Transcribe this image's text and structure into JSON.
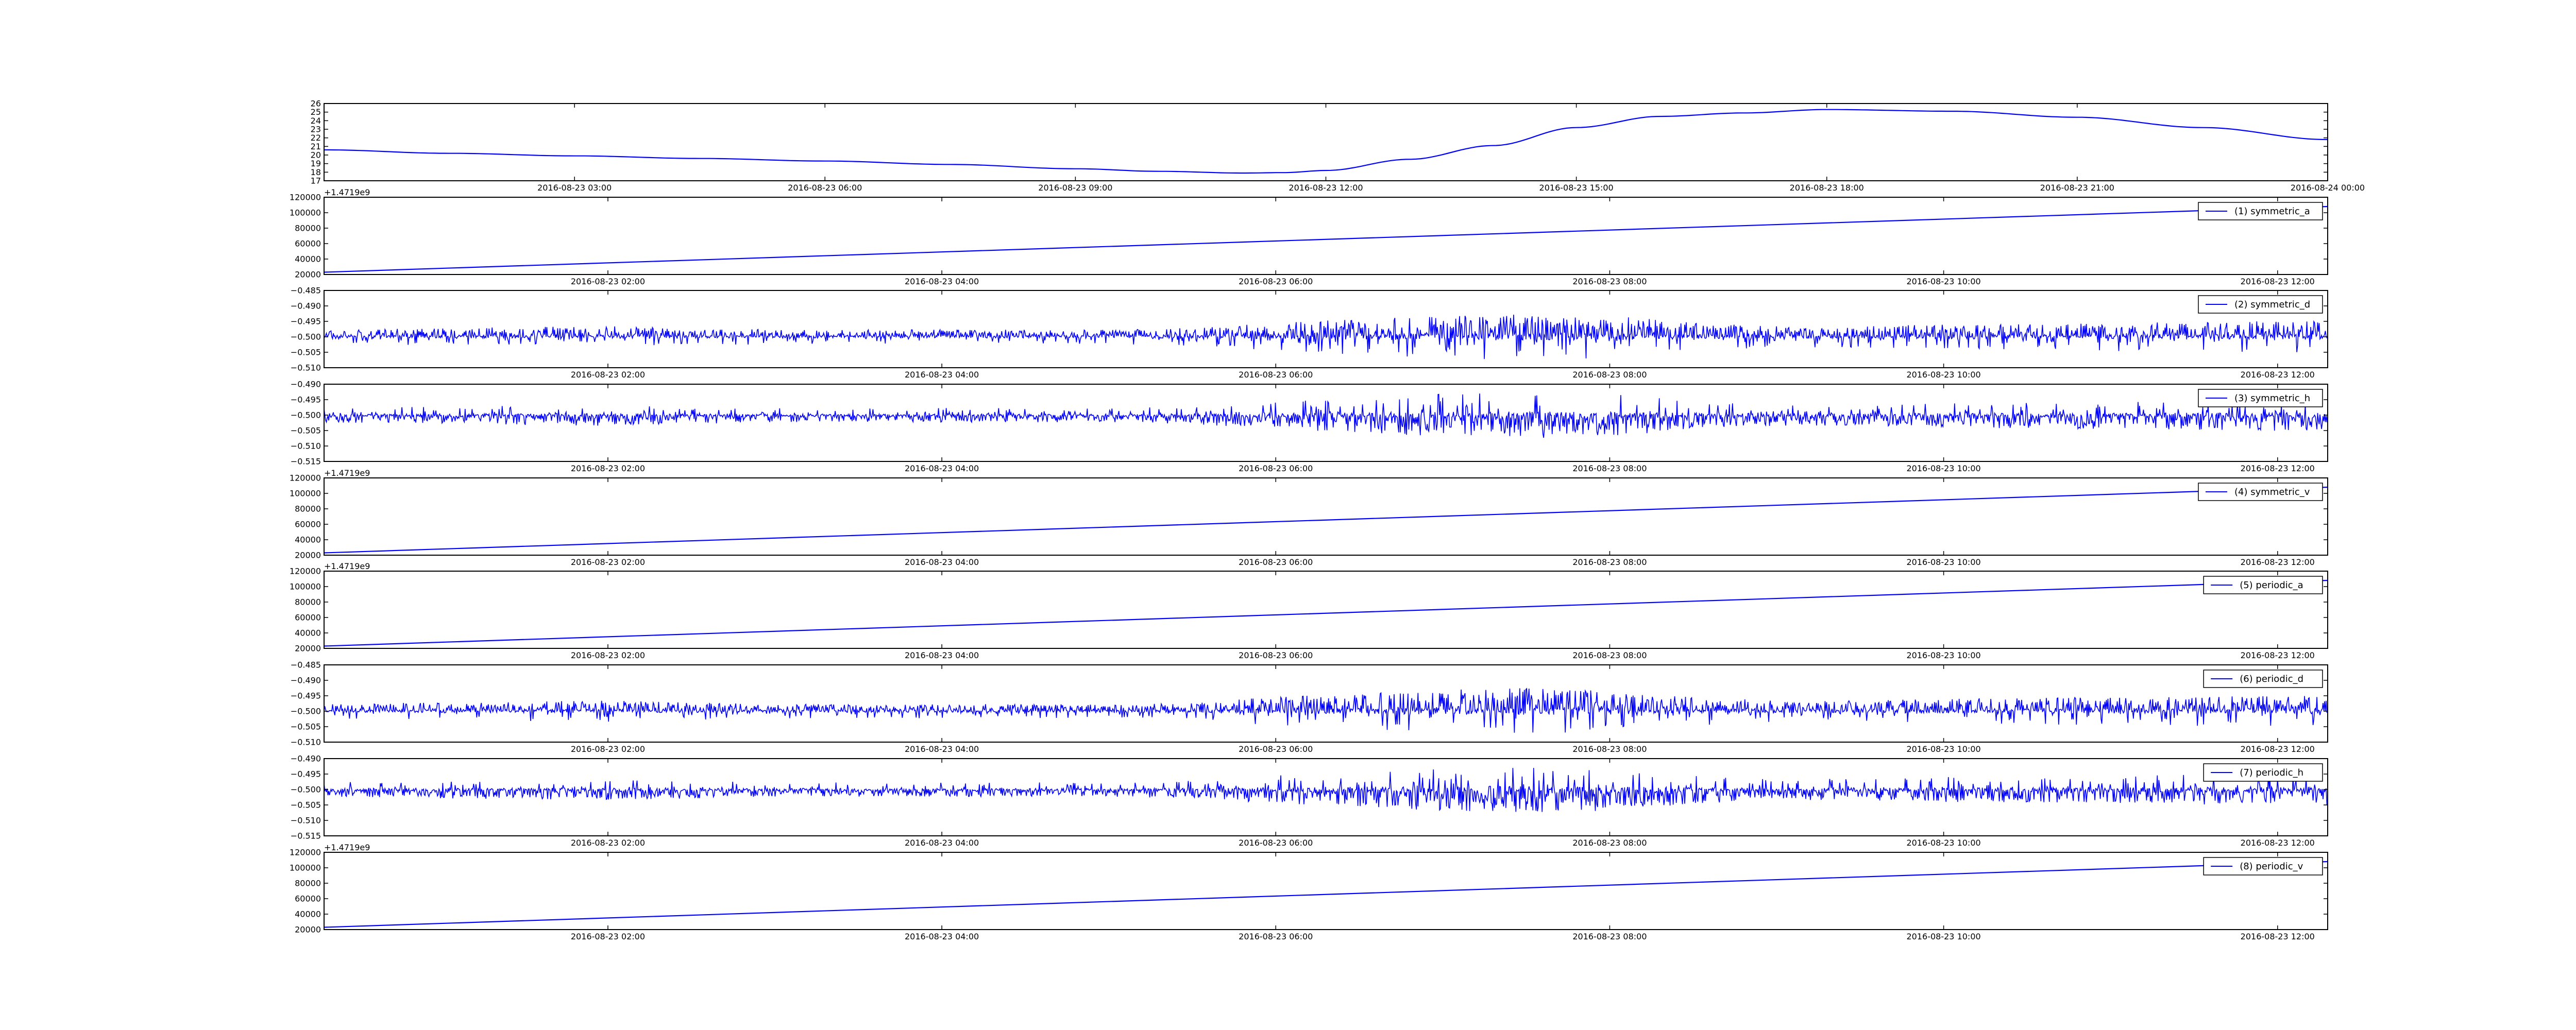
{
  "chart_data": [
    {
      "type": "line",
      "ylim": [
        17,
        26
      ],
      "y_ticks": [
        "17",
        "18",
        "19",
        "20",
        "21",
        "22",
        "23",
        "24",
        "25",
        "26"
      ],
      "x_ticks": [
        "2016-08-23 03:00",
        "2016-08-23 06:00",
        "2016-08-23 09:00",
        "2016-08-23 12:00",
        "2016-08-23 15:00",
        "2016-08-23 18:00",
        "2016-08-23 21:00",
        "2016-08-24 00:00"
      ],
      "offset_text": "",
      "legend": "",
      "series": [
        {
          "kind": "smooth",
          "x": [
            "2016-08-23 00:00",
            "2016-08-23 01:30",
            "2016-08-23 03:00",
            "2016-08-23 04:30",
            "2016-08-23 06:00",
            "2016-08-23 07:30",
            "2016-08-23 09:00",
            "2016-08-23 10:00",
            "2016-08-23 11:00",
            "2016-08-23 11:30",
            "2016-08-23 12:00",
            "2016-08-23 13:00",
            "2016-08-23 14:00",
            "2016-08-23 15:00",
            "2016-08-23 16:00",
            "2016-08-23 17:00",
            "2016-08-23 18:00",
            "2016-08-23 19:30",
            "2016-08-23 21:00",
            "2016-08-23 22:30",
            "2016-08-24 00:00"
          ],
          "values": [
            20.6,
            20.2,
            19.9,
            19.6,
            19.3,
            18.9,
            18.4,
            18.1,
            17.9,
            17.95,
            18.2,
            19.5,
            21.1,
            23.2,
            24.5,
            24.9,
            25.3,
            25.1,
            24.4,
            23.2,
            21.8
          ]
        }
      ]
    },
    {
      "type": "line",
      "ylim": [
        20000,
        120000
      ],
      "y_ticks": [
        "20000",
        "40000",
        "60000",
        "80000",
        "100000",
        "120000"
      ],
      "x_ticks": [
        "2016-08-23 02:00",
        "2016-08-23 04:00",
        "2016-08-23 06:00",
        "2016-08-23 08:00",
        "2016-08-23 10:00",
        "2016-08-23 12:00"
      ],
      "offset_text": "+1.4719e9",
      "legend": "(1) symmetric_a",
      "series": [
        {
          "kind": "linear",
          "x": [
            "2016-08-23 00:18",
            "2016-08-23 12:18"
          ],
          "values": [
            23000,
            108000
          ]
        }
      ]
    },
    {
      "type": "line",
      "ylim": [
        -0.51,
        -0.485
      ],
      "y_ticks": [
        "−0.510",
        "−0.505",
        "−0.500",
        "−0.495",
        "−0.490",
        "−0.485"
      ],
      "x_ticks": [
        "2016-08-23 02:00",
        "2016-08-23 04:00",
        "2016-08-23 06:00",
        "2016-08-23 08:00",
        "2016-08-23 10:00",
        "2016-08-23 12:00"
      ],
      "offset_text": "",
      "legend": "(2) symmetric_d",
      "series": [
        {
          "kind": "noise",
          "baseline": -0.5,
          "x": [
            "2016-08-23 00:18",
            "2016-08-23 12:18"
          ],
          "amplitude_x": [
            "2016-08-23 00:18",
            "2016-08-23 01:00",
            "2016-08-23 02:00",
            "2016-08-23 03:00",
            "2016-08-23 04:00",
            "2016-08-23 05:00",
            "2016-08-23 05:30",
            "2016-08-23 06:00",
            "2016-08-23 06:30",
            "2016-08-23 07:00",
            "2016-08-23 07:30",
            "2016-08-23 08:00",
            "2016-08-23 08:30",
            "2016-08-23 09:00",
            "2016-08-23 09:30",
            "2016-08-23 10:00",
            "2016-08-23 11:00",
            "2016-08-23 12:18"
          ],
          "amplitude": [
            0.002,
            0.0025,
            0.003,
            0.002,
            0.002,
            0.002,
            0.0025,
            0.004,
            0.005,
            0.006,
            0.0065,
            0.006,
            0.004,
            0.003,
            0.003,
            0.0035,
            0.004,
            0.0045
          ],
          "skew": 0.6
        }
      ]
    },
    {
      "type": "line",
      "ylim": [
        -0.515,
        -0.49
      ],
      "y_ticks": [
        "−0.515",
        "−0.510",
        "−0.505",
        "−0.500",
        "−0.495",
        "−0.490"
      ],
      "x_ticks": [
        "2016-08-23 02:00",
        "2016-08-23 04:00",
        "2016-08-23 06:00",
        "2016-08-23 08:00",
        "2016-08-23 10:00",
        "2016-08-23 12:00"
      ],
      "offset_text": "",
      "legend": "(3) symmetric_h",
      "series": [
        {
          "kind": "noise",
          "baseline": -0.5,
          "x": [
            "2016-08-23 00:18",
            "2016-08-23 12:18"
          ],
          "amplitude_x": [
            "2016-08-23 00:18",
            "2016-08-23 01:00",
            "2016-08-23 02:00",
            "2016-08-23 03:00",
            "2016-08-23 04:00",
            "2016-08-23 05:00",
            "2016-08-23 05:30",
            "2016-08-23 06:00",
            "2016-08-23 06:30",
            "2016-08-23 07:00",
            "2016-08-23 07:30",
            "2016-08-23 08:00",
            "2016-08-23 08:30",
            "2016-08-23 09:00",
            "2016-08-23 09:30",
            "2016-08-23 10:00",
            "2016-08-23 11:00",
            "2016-08-23 12:18"
          ],
          "amplitude": [
            0.002,
            0.0025,
            0.003,
            0.002,
            0.002,
            0.002,
            0.0025,
            0.004,
            0.005,
            0.006,
            0.0065,
            0.006,
            0.004,
            0.003,
            0.003,
            0.0035,
            0.004,
            0.0045
          ],
          "skew": -0.6
        }
      ]
    },
    {
      "type": "line",
      "ylim": [
        20000,
        120000
      ],
      "y_ticks": [
        "20000",
        "40000",
        "60000",
        "80000",
        "100000",
        "120000"
      ],
      "x_ticks": [
        "2016-08-23 02:00",
        "2016-08-23 04:00",
        "2016-08-23 06:00",
        "2016-08-23 08:00",
        "2016-08-23 10:00",
        "2016-08-23 12:00"
      ],
      "offset_text": "+1.4719e9",
      "legend": "(4) symmetric_v",
      "series": [
        {
          "kind": "linear",
          "x": [
            "2016-08-23 00:18",
            "2016-08-23 12:18"
          ],
          "values": [
            23000,
            108000
          ]
        }
      ]
    },
    {
      "type": "line",
      "ylim": [
        20000,
        120000
      ],
      "y_ticks": [
        "20000",
        "40000",
        "60000",
        "80000",
        "100000",
        "120000"
      ],
      "x_ticks": [
        "2016-08-23 02:00",
        "2016-08-23 04:00",
        "2016-08-23 06:00",
        "2016-08-23 08:00",
        "2016-08-23 10:00",
        "2016-08-23 12:00"
      ],
      "offset_text": "+1.4719e9",
      "legend": "(5) periodic_a",
      "series": [
        {
          "kind": "linear",
          "x": [
            "2016-08-23 00:18",
            "2016-08-23 12:18"
          ],
          "values": [
            23000,
            108000
          ]
        }
      ]
    },
    {
      "type": "line",
      "ylim": [
        -0.51,
        -0.485
      ],
      "y_ticks": [
        "−0.510",
        "−0.505",
        "−0.500",
        "−0.495",
        "−0.490",
        "−0.485"
      ],
      "x_ticks": [
        "2016-08-23 02:00",
        "2016-08-23 04:00",
        "2016-08-23 06:00",
        "2016-08-23 08:00",
        "2016-08-23 10:00",
        "2016-08-23 12:00"
      ],
      "offset_text": "",
      "legend": "(6) periodic_d",
      "series": [
        {
          "kind": "noise",
          "baseline": -0.5,
          "x": [
            "2016-08-23 00:18",
            "2016-08-23 12:18"
          ],
          "amplitude_x": [
            "2016-08-23 00:18",
            "2016-08-23 01:00",
            "2016-08-23 02:00",
            "2016-08-23 03:00",
            "2016-08-23 04:00",
            "2016-08-23 05:00",
            "2016-08-23 05:30",
            "2016-08-23 06:00",
            "2016-08-23 06:30",
            "2016-08-23 07:00",
            "2016-08-23 07:30",
            "2016-08-23 08:00",
            "2016-08-23 08:30",
            "2016-08-23 09:00",
            "2016-08-23 09:30",
            "2016-08-23 10:00",
            "2016-08-23 11:00",
            "2016-08-23 12:18"
          ],
          "amplitude": [
            0.002,
            0.0025,
            0.003,
            0.002,
            0.002,
            0.002,
            0.0025,
            0.004,
            0.005,
            0.006,
            0.0065,
            0.006,
            0.004,
            0.003,
            0.003,
            0.0035,
            0.004,
            0.0045
          ],
          "skew": 0.6
        }
      ]
    },
    {
      "type": "line",
      "ylim": [
        -0.515,
        -0.49
      ],
      "y_ticks": [
        "−0.515",
        "−0.510",
        "−0.505",
        "−0.500",
        "−0.495",
        "−0.490"
      ],
      "x_ticks": [
        "2016-08-23 02:00",
        "2016-08-23 04:00",
        "2016-08-23 06:00",
        "2016-08-23 08:00",
        "2016-08-23 10:00",
        "2016-08-23 12:00"
      ],
      "offset_text": "",
      "legend": "(7) periodic_h",
      "series": [
        {
          "kind": "noise",
          "baseline": -0.5,
          "x": [
            "2016-08-23 00:18",
            "2016-08-23 12:18"
          ],
          "amplitude_x": [
            "2016-08-23 00:18",
            "2016-08-23 01:00",
            "2016-08-23 02:00",
            "2016-08-23 03:00",
            "2016-08-23 04:00",
            "2016-08-23 05:00",
            "2016-08-23 05:30",
            "2016-08-23 06:00",
            "2016-08-23 06:30",
            "2016-08-23 07:00",
            "2016-08-23 07:30",
            "2016-08-23 08:00",
            "2016-08-23 08:30",
            "2016-08-23 09:00",
            "2016-08-23 09:30",
            "2016-08-23 10:00",
            "2016-08-23 11:00",
            "2016-08-23 12:18"
          ],
          "amplitude": [
            0.002,
            0.0025,
            0.003,
            0.002,
            0.002,
            0.002,
            0.0025,
            0.004,
            0.005,
            0.006,
            0.0065,
            0.006,
            0.004,
            0.003,
            0.003,
            0.0035,
            0.004,
            0.0045
          ],
          "skew": -0.6
        }
      ]
    },
    {
      "type": "line",
      "ylim": [
        20000,
        120000
      ],
      "y_ticks": [
        "20000",
        "40000",
        "60000",
        "80000",
        "100000",
        "120000"
      ],
      "x_ticks": [
        "2016-08-23 02:00",
        "2016-08-23 04:00",
        "2016-08-23 06:00",
        "2016-08-23 08:00",
        "2016-08-23 10:00",
        "2016-08-23 12:00"
      ],
      "offset_text": "+1.4719e9",
      "legend": "(8) periodic_v",
      "series": [
        {
          "kind": "linear",
          "x": [
            "2016-08-23 00:18",
            "2016-08-23 12:18"
          ],
          "values": [
            23000,
            108000
          ]
        }
      ]
    }
  ],
  "colors": {
    "line": "#0000ff",
    "axes": "#000000",
    "background": "#ffffff"
  }
}
